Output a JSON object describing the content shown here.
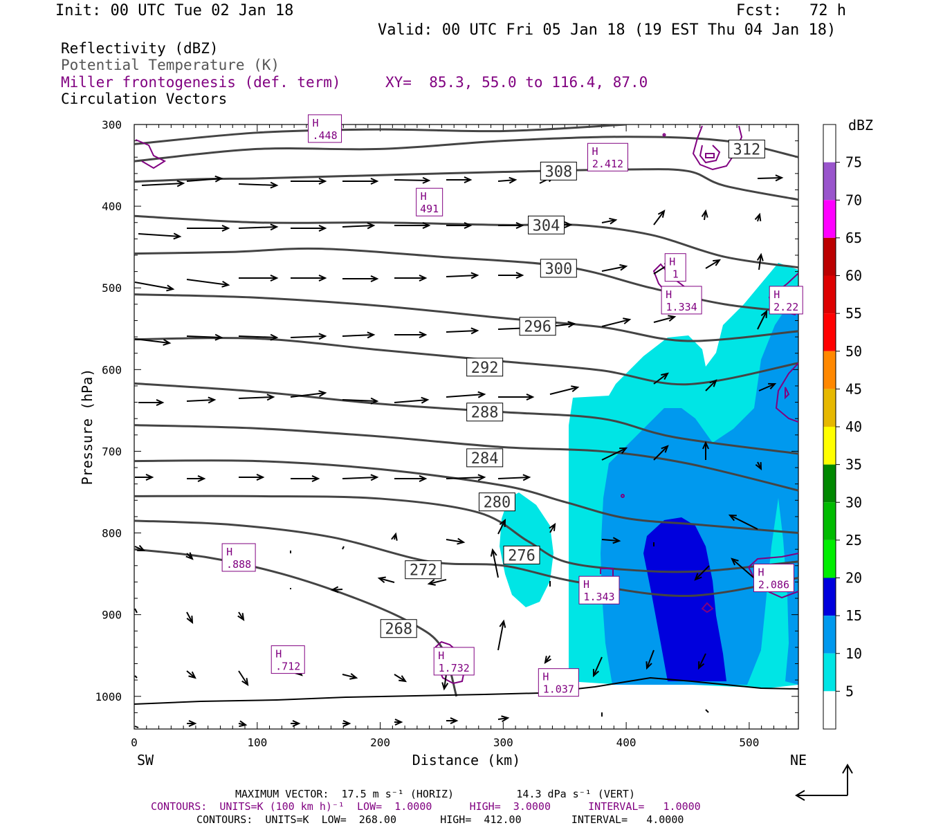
{
  "header": {
    "init": "Init: 00 UTC Tue 02 Jan 18",
    "fcst": "Fcst:   72 h",
    "valid": "Valid: 00 UTC Fri 05 Jan 18 (19 EST Thu 04 Jan 18)"
  },
  "legend": {
    "reflectivity": "Reflectivity (dBZ)",
    "theta": "Potential Temperature (K)",
    "frontogenesis": "Miller frontogenesis (def. term)",
    "xy": "XY=  85.3, 55.0 to 116.4, 87.0",
    "vectors": "Circulation Vectors"
  },
  "colors": {
    "theta": "#444444",
    "frontogenesis": "#800080",
    "dbz_5": "#00e5e5",
    "dbz_10": "#0099ee",
    "dbz_15": "#0000dd"
  },
  "colorbar": {
    "title": "dBZ",
    "labels": [
      "75",
      "70",
      "65",
      "60",
      "55",
      "50",
      "45",
      "40",
      "35",
      "30",
      "25",
      "20",
      "15",
      "10",
      "5"
    ],
    "colors": [
      "#ffffff",
      "#9955cc",
      "#ff00ff",
      "#bb0000",
      "#dd0000",
      "#ff0000",
      "#ff8800",
      "#e6b800",
      "#ffff00",
      "#008800",
      "#00bb00",
      "#00ee00",
      "#0000dd",
      "#0099ee",
      "#00e5e5",
      "#ffffff"
    ]
  },
  "footer": {
    "max_vector": "MAXIMUM VECTOR:  17.5 m s⁻¹ (HORIZ)          14.3 dPa s⁻¹ (VERT)",
    "contours1": "CONTOURS:  UNITS=K (100 km h)⁻¹  LOW=  1.0000      HIGH=  3.0000      INTERVAL=   1.0000",
    "contours2": "CONTOURS:  UNITS=K  LOW=  268.00       HIGH=  412.00        INTERVAL=   4.0000"
  },
  "chart_data": {
    "type": "cross-section",
    "xlabel": "Distance (km)",
    "ylabel": "Pressure (hPa)",
    "xlim": [
      0,
      540
    ],
    "ylim": [
      1040,
      300
    ],
    "xticks": [
      0,
      100,
      200,
      300,
      400,
      500
    ],
    "yticks": [
      300,
      400,
      500,
      600,
      700,
      800,
      900,
      1000
    ],
    "x_end_labels": {
      "left": "SW",
      "right": "NE"
    },
    "theta_contours": [
      {
        "label": "268",
        "lx": 215,
        "ly": 917,
        "points": [
          [
            0,
            820
          ],
          [
            60,
            830
          ],
          [
            120,
            850
          ],
          [
            180,
            880
          ],
          [
            225,
            910
          ],
          [
            250,
            940
          ],
          [
            262,
            1000
          ]
        ]
      },
      {
        "label": "272",
        "lx": 235,
        "ly": 845,
        "points": [
          [
            0,
            785
          ],
          [
            80,
            790
          ],
          [
            160,
            805
          ],
          [
            240,
            835
          ],
          [
            300,
            840
          ],
          [
            360,
            860
          ],
          [
            450,
            877
          ],
          [
            540,
            855
          ]
        ]
      },
      {
        "label": "276",
        "lx": 315,
        "ly": 827,
        "points": [
          [
            0,
            755
          ],
          [
            100,
            755
          ],
          [
            200,
            758
          ],
          [
            280,
            775
          ],
          [
            320,
            810
          ],
          [
            350,
            835
          ],
          [
            400,
            845
          ],
          [
            460,
            847
          ],
          [
            540,
            835
          ]
        ]
      },
      {
        "label": "280",
        "lx": 295,
        "ly": 762,
        "points": [
          [
            0,
            712
          ],
          [
            100,
            712
          ],
          [
            200,
            722
          ],
          [
            300,
            742
          ],
          [
            350,
            762
          ],
          [
            400,
            782
          ],
          [
            460,
            790
          ],
          [
            540,
            800
          ]
        ]
      },
      {
        "label": "284",
        "lx": 285,
        "ly": 708,
        "points": [
          [
            0,
            668
          ],
          [
            100,
            672
          ],
          [
            200,
            682
          ],
          [
            300,
            695
          ],
          [
            380,
            700
          ],
          [
            450,
            715
          ],
          [
            540,
            748
          ]
        ]
      },
      {
        "label": "288",
        "lx": 285,
        "ly": 652,
        "points": [
          [
            0,
            617
          ],
          [
            100,
            627
          ],
          [
            200,
            642
          ],
          [
            300,
            652
          ],
          [
            380,
            660
          ],
          [
            440,
            683
          ],
          [
            540,
            703
          ]
        ]
      },
      {
        "label": "292",
        "lx": 285,
        "ly": 597,
        "points": [
          [
            0,
            563
          ],
          [
            100,
            562
          ],
          [
            200,
            576
          ],
          [
            300,
            590
          ],
          [
            380,
            601
          ],
          [
            450,
            618
          ],
          [
            540,
            592
          ]
        ]
      },
      {
        "label": "296",
        "lx": 328,
        "ly": 547,
        "points": [
          [
            0,
            508
          ],
          [
            100,
            512
          ],
          [
            200,
            522
          ],
          [
            300,
            537
          ],
          [
            380,
            548
          ],
          [
            450,
            565
          ],
          [
            540,
            553
          ]
        ]
      },
      {
        "label": "300",
        "lx": 345,
        "ly": 476,
        "points": [
          [
            0,
            458
          ],
          [
            80,
            456
          ],
          [
            150,
            452
          ],
          [
            250,
            462
          ],
          [
            350,
            474
          ],
          [
            420,
            500
          ],
          [
            480,
            520
          ],
          [
            540,
            530
          ]
        ]
      },
      {
        "label": "304",
        "lx": 335,
        "ly": 423,
        "points": [
          [
            0,
            412
          ],
          [
            100,
            420
          ],
          [
            200,
            420
          ],
          [
            300,
            423
          ],
          [
            360,
            423
          ],
          [
            420,
            435
          ],
          [
            480,
            462
          ],
          [
            540,
            475
          ]
        ]
      },
      {
        "label": "308",
        "lx": 345,
        "ly": 357,
        "points": [
          [
            0,
            370
          ],
          [
            50,
            367
          ],
          [
            100,
            366
          ],
          [
            150,
            364
          ],
          [
            200,
            362
          ],
          [
            300,
            358
          ],
          [
            400,
            355
          ],
          [
            450,
            357
          ],
          [
            480,
            375
          ],
          [
            540,
            392
          ]
        ]
      },
      {
        "label": "312",
        "lx": 498,
        "ly": 330,
        "points": [
          [
            0,
            345
          ],
          [
            100,
            330
          ],
          [
            200,
            330
          ],
          [
            300,
            320
          ],
          [
            400,
            315
          ],
          [
            480,
            320
          ],
          [
            540,
            340
          ]
        ]
      },
      {
        "label": "",
        "lx": 0,
        "ly": 0,
        "points": [
          [
            0,
            324
          ],
          [
            100,
            310
          ],
          [
            200,
            306
          ],
          [
            300,
            308
          ],
          [
            400,
            300
          ]
        ]
      }
    ],
    "frontogenesis_maxima": [
      {
        "value": ".448",
        "x": 155,
        "p": 305
      },
      {
        "value": "2.412",
        "x": 385,
        "p": 340
      },
      {
        "value": "491",
        "x": 240,
        "p": 395
      },
      {
        "value": "1",
        "x": 440,
        "p": 475
      },
      {
        "value": "1.334",
        "x": 445,
        "p": 515
      },
      {
        "value": "2.22",
        "x": 530,
        "p": 515
      },
      {
        "value": ".888",
        "x": 85,
        "p": 830
      },
      {
        "value": "1.343",
        "x": 378,
        "p": 870
      },
      {
        "value": "2.086",
        "x": 520,
        "p": 855
      },
      {
        "value": ".712",
        "x": 125,
        "p": 955
      },
      {
        "value": "1.732",
        "x": 260,
        "p": 957
      },
      {
        "value": "1.037",
        "x": 345,
        "p": 983
      }
    ]
  }
}
